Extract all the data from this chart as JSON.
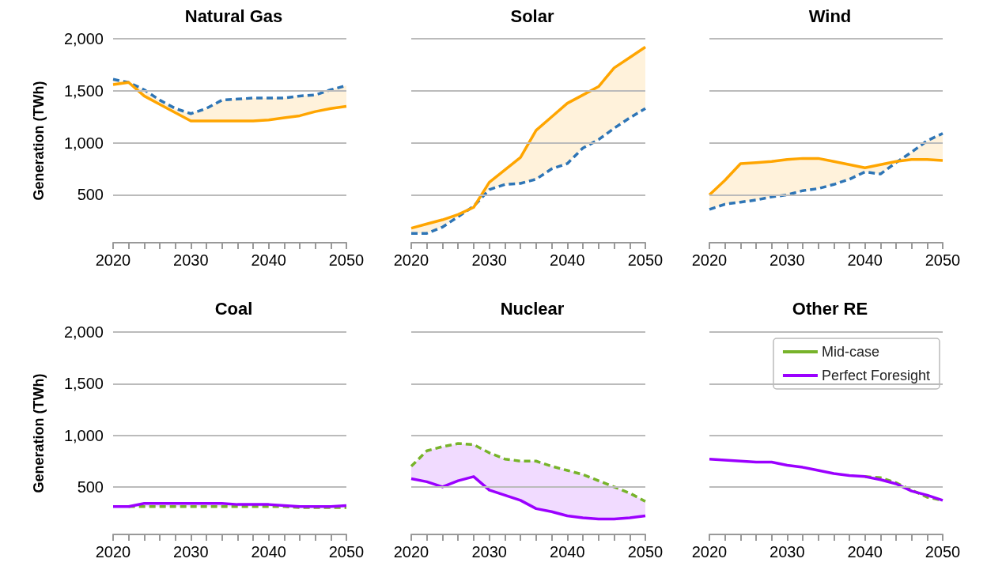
{
  "chart_data": [
    {
      "type": "line",
      "title": "Natural Gas",
      "ylabel": "Generation (TWh)",
      "x": [
        2020,
        2022,
        2024,
        2026,
        2028,
        2030,
        2032,
        2034,
        2036,
        2038,
        2040,
        2042,
        2044,
        2046,
        2048,
        2050
      ],
      "xlim": [
        2020,
        2050
      ],
      "xticks": [
        2020,
        {
          "value": 2022,
          "label": null
        },
        {
          "value": 2024,
          "label": null
        },
        {
          "value": 2026,
          "label": null
        },
        {
          "value": 2028,
          "label": null
        },
        2030,
        {
          "value": 2032,
          "label": null
        },
        {
          "value": 2034,
          "label": null
        },
        {
          "value": 2036,
          "label": null
        },
        {
          "value": 2038,
          "label": null
        },
        2040,
        {
          "value": 2042,
          "label": null
        },
        {
          "value": 2044,
          "label": null
        },
        {
          "value": 2046,
          "label": null
        },
        {
          "value": 2048,
          "label": null
        },
        2050
      ],
      "ylim": [
        40,
        2000
      ],
      "yticks": [
        500,
        {
          "value": 1000,
          "label": "1,000"
        },
        {
          "value": 1500,
          "label": "1,500"
        },
        {
          "value": 2000,
          "label": "2,000"
        }
      ],
      "grid": "y",
      "marker": "none",
      "series": [
        {
          "color": "#2e75b6",
          "line_style": "dashed",
          "values": [
            1610,
            1580,
            1510,
            1410,
            1330,
            1280,
            1330,
            1410,
            1420,
            1430,
            1430,
            1430,
            1450,
            1460,
            1510,
            1550
          ]
        },
        {
          "color": "#ffa500",
          "line_style": "solid",
          "values": [
            1560,
            1580,
            1450,
            1370,
            1290,
            1210,
            1210,
            1210,
            1210,
            1210,
            1220,
            1240,
            1260,
            1300,
            1330,
            1350
          ],
          "lower": [
            1560,
            1580,
            1450,
            1370,
            1290,
            1210,
            1210,
            1210,
            1210,
            1210,
            1220,
            1240,
            1260,
            1300,
            1330,
            1350
          ],
          "upper": [
            1610,
            1580,
            1510,
            1410,
            1330,
            1280,
            1330,
            1410,
            1420,
            1430,
            1430,
            1430,
            1450,
            1460,
            1510,
            1550
          ]
        }
      ]
    },
    {
      "type": "line",
      "title": "Solar",
      "x": [
        2020,
        2022,
        2024,
        2026,
        2028,
        2030,
        2032,
        2034,
        2036,
        2038,
        2040,
        2042,
        2044,
        2046,
        2048,
        2050
      ],
      "xlim": [
        2020,
        2050
      ],
      "xticks": [
        2020,
        {
          "value": 2022,
          "label": null
        },
        {
          "value": 2024,
          "label": null
        },
        {
          "value": 2026,
          "label": null
        },
        {
          "value": 2028,
          "label": null
        },
        2030,
        {
          "value": 2032,
          "label": null
        },
        {
          "value": 2034,
          "label": null
        },
        {
          "value": 2036,
          "label": null
        },
        {
          "value": 2038,
          "label": null
        },
        2040,
        {
          "value": 2042,
          "label": null
        },
        {
          "value": 2044,
          "label": null
        },
        {
          "value": 2046,
          "label": null
        },
        {
          "value": 2048,
          "label": null
        },
        2050
      ],
      "ylim": [
        40,
        2000
      ],
      "yticks": [
        {
          "value": 500,
          "label": null
        },
        {
          "value": 1000,
          "label": null
        },
        {
          "value": 1500,
          "label": null
        },
        {
          "value": 2000,
          "label": null
        }
      ],
      "tick_labels": "x",
      "grid": "y",
      "marker": "none",
      "series": [
        {
          "color": "#2e75b6",
          "line_style": "dashed",
          "values": [
            130,
            130,
            190,
            290,
            390,
            550,
            600,
            610,
            650,
            750,
            800,
            950,
            1030,
            1140,
            1240,
            1330
          ]
        },
        {
          "color": "#ffa500",
          "line_style": "solid",
          "values": [
            180,
            220,
            260,
            310,
            380,
            620,
            740,
            860,
            1120,
            1250,
            1380,
            1460,
            1540,
            1720,
            1820,
            1920
          ],
          "lower": [
            130,
            130,
            190,
            290,
            380,
            550,
            600,
            610,
            650,
            750,
            800,
            950,
            1030,
            1140,
            1240,
            1330
          ],
          "upper": [
            180,
            220,
            260,
            310,
            390,
            620,
            740,
            860,
            1120,
            1250,
            1380,
            1460,
            1540,
            1720,
            1820,
            1920
          ]
        }
      ]
    },
    {
      "type": "line",
      "title": "Wind",
      "x": [
        2020,
        2022,
        2024,
        2026,
        2028,
        2030,
        2032,
        2034,
        2036,
        2038,
        2040,
        2042,
        2044,
        2046,
        2048,
        2050
      ],
      "xlim": [
        2020,
        2050
      ],
      "xticks": [
        2020,
        {
          "value": 2022,
          "label": null
        },
        {
          "value": 2024,
          "label": null
        },
        {
          "value": 2026,
          "label": null
        },
        {
          "value": 2028,
          "label": null
        },
        2030,
        {
          "value": 2032,
          "label": null
        },
        {
          "value": 2034,
          "label": null
        },
        {
          "value": 2036,
          "label": null
        },
        {
          "value": 2038,
          "label": null
        },
        2040,
        {
          "value": 2042,
          "label": null
        },
        {
          "value": 2044,
          "label": null
        },
        {
          "value": 2046,
          "label": null
        },
        {
          "value": 2048,
          "label": null
        },
        2050
      ],
      "ylim": [
        40,
        2000
      ],
      "yticks": [
        {
          "value": 500,
          "label": null
        },
        {
          "value": 1000,
          "label": null
        },
        {
          "value": 1500,
          "label": null
        },
        {
          "value": 2000,
          "label": null
        }
      ],
      "tick_labels": "x",
      "grid": "y",
      "marker": "none",
      "series": [
        {
          "color": "#2e75b6",
          "line_style": "dashed",
          "values": [
            360,
            410,
            430,
            450,
            480,
            500,
            540,
            560,
            600,
            650,
            720,
            700,
            810,
            910,
            1020,
            1090
          ]
        },
        {
          "color": "#ffa500",
          "line_style": "solid",
          "values": [
            500,
            640,
            800,
            810,
            820,
            840,
            850,
            850,
            820,
            790,
            760,
            790,
            820,
            840,
            840,
            830
          ],
          "lower": [
            360,
            410,
            430,
            450,
            480,
            500,
            540,
            560,
            600,
            650,
            720,
            700,
            810,
            840,
            840,
            830
          ],
          "upper": [
            500,
            640,
            800,
            810,
            820,
            840,
            850,
            850,
            820,
            790,
            760,
            790,
            820,
            910,
            1020,
            1090
          ]
        }
      ]
    },
    {
      "type": "line",
      "title": "Coal",
      "ylabel": "Generation (TWh)",
      "x": [
        2020,
        2022,
        2024,
        2026,
        2028,
        2030,
        2032,
        2034,
        2036,
        2038,
        2040,
        2042,
        2044,
        2046,
        2048,
        2050
      ],
      "xlim": [
        2020,
        2050
      ],
      "xticks": [
        2020,
        {
          "value": 2022,
          "label": null
        },
        {
          "value": 2024,
          "label": null
        },
        {
          "value": 2026,
          "label": null
        },
        {
          "value": 2028,
          "label": null
        },
        2030,
        {
          "value": 2032,
          "label": null
        },
        {
          "value": 2034,
          "label": null
        },
        {
          "value": 2036,
          "label": null
        },
        {
          "value": 2038,
          "label": null
        },
        2040,
        {
          "value": 2042,
          "label": null
        },
        {
          "value": 2044,
          "label": null
        },
        {
          "value": 2046,
          "label": null
        },
        {
          "value": 2048,
          "label": null
        },
        2050
      ],
      "ylim": [
        40,
        2000
      ],
      "yticks": [
        500,
        {
          "value": 1000,
          "label": "1,000"
        },
        {
          "value": 1500,
          "label": "1,500"
        },
        {
          "value": 2000,
          "label": "2,000"
        }
      ],
      "grid": "y",
      "marker": "none",
      "series": [
        {
          "color": "#77b32a",
          "line_style": "dashed",
          "values": [
            null,
            310,
            310,
            310,
            310,
            310,
            310,
            310,
            310,
            310,
            310,
            310,
            300,
            300,
            300,
            300
          ]
        },
        {
          "color": "#9b00ff",
          "line_style": "solid",
          "values": [
            310,
            310,
            340,
            340,
            340,
            340,
            340,
            340,
            330,
            330,
            330,
            320,
            310,
            310,
            310,
            320
          ],
          "lower": [
            310,
            310,
            310,
            310,
            310,
            310,
            310,
            310,
            310,
            310,
            310,
            310,
            300,
            300,
            300,
            300
          ],
          "upper": [
            310,
            310,
            340,
            340,
            340,
            340,
            340,
            340,
            330,
            330,
            330,
            320,
            310,
            310,
            310,
            320
          ]
        }
      ]
    },
    {
      "type": "line",
      "title": "Nuclear",
      "x": [
        2020,
        2022,
        2024,
        2026,
        2028,
        2030,
        2032,
        2034,
        2036,
        2038,
        2040,
        2042,
        2044,
        2046,
        2048,
        2050
      ],
      "xlim": [
        2020,
        2050
      ],
      "xticks": [
        2020,
        {
          "value": 2022,
          "label": null
        },
        {
          "value": 2024,
          "label": null
        },
        {
          "value": 2026,
          "label": null
        },
        {
          "value": 2028,
          "label": null
        },
        2030,
        {
          "value": 2032,
          "label": null
        },
        {
          "value": 2034,
          "label": null
        },
        {
          "value": 2036,
          "label": null
        },
        {
          "value": 2038,
          "label": null
        },
        2040,
        {
          "value": 2042,
          "label": null
        },
        {
          "value": 2044,
          "label": null
        },
        {
          "value": 2046,
          "label": null
        },
        {
          "value": 2048,
          "label": null
        },
        2050
      ],
      "ylim": [
        40,
        2000
      ],
      "yticks": [
        {
          "value": 500,
          "label": null
        },
        {
          "value": 1000,
          "label": null
        },
        {
          "value": 1500,
          "label": null
        },
        {
          "value": 2000,
          "label": null
        }
      ],
      "tick_labels": "x",
      "grid": "y",
      "marker": "none",
      "series": [
        {
          "color": "#77b32a",
          "line_style": "dashed",
          "values": [
            700,
            850,
            890,
            920,
            910,
            830,
            770,
            750,
            750,
            700,
            660,
            620,
            560,
            500,
            440,
            360
          ]
        },
        {
          "color": "#9b00ff",
          "line_style": "solid",
          "values": [
            580,
            550,
            500,
            560,
            600,
            470,
            420,
            370,
            290,
            260,
            220,
            200,
            190,
            190,
            200,
            220
          ],
          "lower": [
            580,
            550,
            500,
            560,
            600,
            470,
            420,
            370,
            290,
            260,
            220,
            200,
            190,
            190,
            200,
            220
          ],
          "upper": [
            700,
            850,
            890,
            920,
            910,
            830,
            770,
            750,
            750,
            700,
            660,
            620,
            560,
            500,
            440,
            360
          ]
        }
      ]
    },
    {
      "type": "line",
      "title": "Other RE",
      "x": [
        2020,
        2022,
        2024,
        2026,
        2028,
        2030,
        2032,
        2034,
        2036,
        2038,
        2040,
        2042,
        2044,
        2046,
        2048,
        2050
      ],
      "xlim": [
        2020,
        2050
      ],
      "xticks": [
        2020,
        {
          "value": 2022,
          "label": null
        },
        {
          "value": 2024,
          "label": null
        },
        {
          "value": 2026,
          "label": null
        },
        {
          "value": 2028,
          "label": null
        },
        2030,
        {
          "value": 2032,
          "label": null
        },
        {
          "value": 2034,
          "label": null
        },
        {
          "value": 2036,
          "label": null
        },
        {
          "value": 2038,
          "label": null
        },
        2040,
        {
          "value": 2042,
          "label": null
        },
        {
          "value": 2044,
          "label": null
        },
        {
          "value": 2046,
          "label": null
        },
        {
          "value": 2048,
          "label": null
        },
        2050
      ],
      "ylim": [
        40,
        2000
      ],
      "yticks": [
        {
          "value": 500,
          "label": null
        },
        {
          "value": 1000,
          "label": null
        },
        {
          "value": 1500,
          "label": null
        },
        {
          "value": 2000,
          "label": null
        }
      ],
      "tick_labels": "x",
      "grid": "y",
      "marker": "none",
      "legend": "top right",
      "series": [
        {
          "name": "Mid-case",
          "color": "#77b32a",
          "line_style": "dashed",
          "values": [
            null,
            null,
            null,
            null,
            null,
            null,
            null,
            null,
            null,
            null,
            600,
            590,
            540,
            470,
            400,
            370
          ]
        },
        {
          "name": "Perfect Foresight",
          "color": "#9b00ff",
          "line_style": "solid",
          "values": [
            770,
            760,
            750,
            740,
            740,
            710,
            690,
            660,
            630,
            610,
            600,
            570,
            530,
            460,
            420,
            370
          ],
          "lower": [
            770,
            760,
            750,
            740,
            740,
            710,
            690,
            660,
            630,
            610,
            600,
            570,
            530,
            460,
            400,
            370
          ],
          "upper": [
            770,
            760,
            750,
            740,
            740,
            710,
            690,
            660,
            630,
            610,
            600,
            590,
            540,
            470,
            420,
            370
          ]
        }
      ]
    }
  ]
}
